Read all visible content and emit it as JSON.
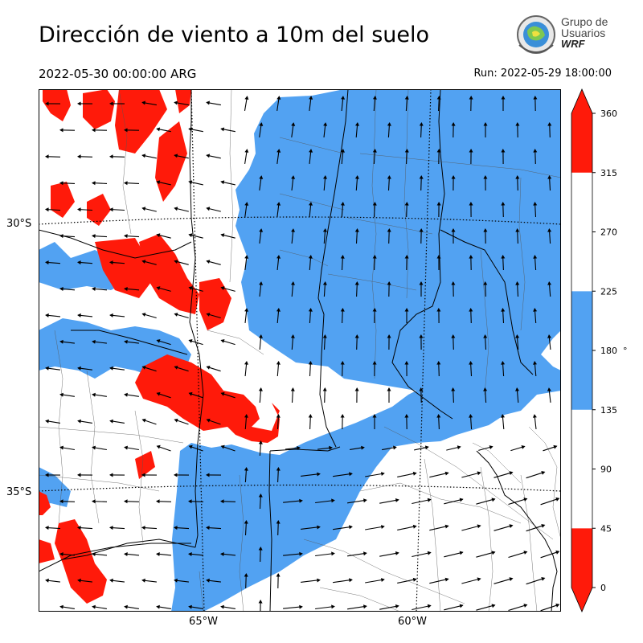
{
  "header": {
    "title": "Dirección de viento a 10m del suelo",
    "valid_time": "2022-05-30 00:00:00 ARG",
    "run_time": "Run: 2022-05-29 18:00:00"
  },
  "logo": {
    "line1": "Grupo de",
    "line2": "Usuarios",
    "line3": "WRF"
  },
  "map": {
    "lat_labels": [
      "30°S",
      "35°S"
    ],
    "lon_labels": [
      "65°W",
      "60°W"
    ],
    "colors": {
      "red": "#ff1a0a",
      "blue": "#52a2f2",
      "white": "#ffffff"
    }
  },
  "colorbar": {
    "ticks": [
      "0",
      "45",
      "90",
      "135",
      "180",
      "225",
      "270",
      "315",
      "360"
    ],
    "unit": "°",
    "bins": [
      {
        "from": 0,
        "to": 45,
        "color": "#ff1a0a"
      },
      {
        "from": 45,
        "to": 135,
        "color": "#ffffff"
      },
      {
        "from": 135,
        "to": 225,
        "color": "#52a2f2"
      },
      {
        "from": 225,
        "to": 315,
        "color": "#ffffff"
      },
      {
        "from": 315,
        "to": 360,
        "color": "#ff1a0a"
      }
    ]
  }
}
